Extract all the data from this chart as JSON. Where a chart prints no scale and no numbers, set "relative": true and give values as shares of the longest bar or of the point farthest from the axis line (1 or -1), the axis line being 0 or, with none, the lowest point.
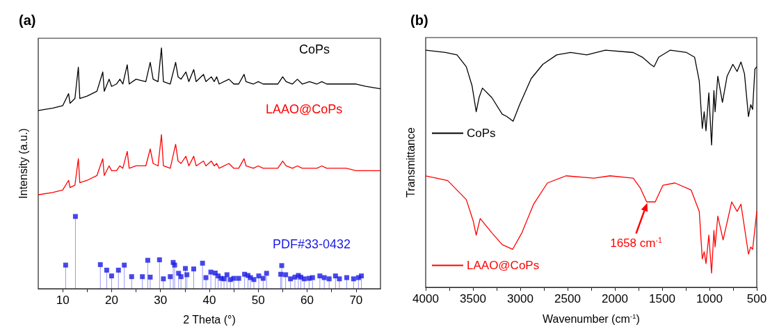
{
  "chart_data": [
    {
      "type": "line",
      "title": "(a)",
      "xlabel": "2 Theta (°)",
      "ylabel": "Intensity (a.u.)",
      "relative": true,
      "legend": false,
      "grid": false,
      "xlim": [
        5,
        75
      ],
      "xticks": [
        {
          "value": 15,
          "label": null
        },
        {
          "value": 25,
          "label": null
        },
        {
          "value": 35,
          "label": null
        },
        {
          "value": 45,
          "label": null
        },
        {
          "value": 55,
          "label": null
        },
        {
          "value": 65,
          "label": null
        },
        10,
        20,
        30,
        40,
        50,
        60,
        70
      ],
      "series": [
        {
          "name": "CoPs",
          "color": "#000000",
          "x": [
            5,
            8,
            10,
            11.2,
            11.5,
            12.5,
            13.2,
            13.5,
            15,
            17,
            18.2,
            18.5,
            19.5,
            20,
            21,
            21.7,
            22.3,
            23.2,
            23.6,
            25,
            27,
            27.9,
            28.5,
            29.5,
            30.2,
            30.6,
            32,
            33.1,
            33.6,
            34.2,
            35.2,
            35.8,
            36.8,
            37.3,
            38.8,
            39.3,
            40.4,
            41,
            41.5,
            42,
            44,
            45,
            46,
            47.1,
            47.5,
            49,
            50,
            51,
            52,
            54,
            55,
            55.7,
            57,
            58,
            59,
            60.5,
            62,
            63,
            64,
            66,
            68,
            70,
            72,
            75
          ],
          "values": [
            0.74,
            0.75,
            0.76,
            0.81,
            0.77,
            0.79,
            0.92,
            0.79,
            0.8,
            0.82,
            0.9,
            0.82,
            0.87,
            0.84,
            0.85,
            0.87,
            0.85,
            0.93,
            0.85,
            0.87,
            0.86,
            0.94,
            0.87,
            0.86,
            1.0,
            0.86,
            0.85,
            0.94,
            0.88,
            0.87,
            0.9,
            0.86,
            0.91,
            0.86,
            0.89,
            0.86,
            0.88,
            0.86,
            0.88,
            0.85,
            0.87,
            0.85,
            0.85,
            0.89,
            0.86,
            0.85,
            0.86,
            0.85,
            0.85,
            0.85,
            0.88,
            0.86,
            0.85,
            0.87,
            0.85,
            0.86,
            0.85,
            0.86,
            0.85,
            0.85,
            0.85,
            0.85,
            0.84,
            0.83
          ]
        },
        {
          "name": "LAAO@CoPs",
          "color": "#ff0000",
          "x": [
            5,
            8,
            10,
            11.2,
            11.5,
            12.5,
            13.2,
            13.5,
            15,
            17,
            18.2,
            18.5,
            19.5,
            20,
            21,
            21.7,
            22.3,
            23.2,
            23.6,
            25,
            27,
            27.9,
            28.5,
            29.5,
            30.2,
            30.6,
            32,
            33.1,
            33.6,
            34.2,
            35.2,
            35.8,
            36.8,
            37.3,
            38.8,
            39.3,
            40.4,
            41,
            41.5,
            42,
            44,
            45,
            46,
            47.1,
            47.5,
            49,
            50,
            51,
            52,
            54,
            55,
            55.7,
            57,
            58,
            59,
            60.5,
            62,
            63,
            64,
            66,
            68,
            70,
            72,
            75
          ],
          "values": [
            0.39,
            0.4,
            0.41,
            0.45,
            0.42,
            0.43,
            0.54,
            0.44,
            0.45,
            0.47,
            0.54,
            0.47,
            0.51,
            0.49,
            0.49,
            0.51,
            0.5,
            0.57,
            0.5,
            0.51,
            0.51,
            0.58,
            0.52,
            0.51,
            0.64,
            0.51,
            0.5,
            0.6,
            0.53,
            0.52,
            0.55,
            0.51,
            0.55,
            0.51,
            0.53,
            0.51,
            0.53,
            0.51,
            0.52,
            0.5,
            0.52,
            0.5,
            0.5,
            0.54,
            0.51,
            0.5,
            0.51,
            0.5,
            0.5,
            0.5,
            0.53,
            0.51,
            0.5,
            0.51,
            0.5,
            0.5,
            0.5,
            0.51,
            0.5,
            0.5,
            0.5,
            0.49,
            0.49,
            0.49
          ]
        },
        {
          "name": "PDF#33-0432",
          "type": "lollipop",
          "marker": "square",
          "color": "#1a1ae6",
          "x": [
            10.6,
            12.6,
            17.7,
            19.0,
            20.0,
            21.4,
            22.6,
            24.1,
            26.3,
            27.4,
            27.9,
            29.8,
            30.6,
            32.0,
            32.6,
            32.9,
            33.7,
            34.2,
            35.1,
            35.4,
            36.8,
            38.6,
            39.3,
            40.3,
            41.2,
            41.8,
            42.4,
            43.0,
            43.6,
            44.3,
            45.0,
            46.0,
            46.9,
            47.2,
            47.9,
            48.4,
            49.1,
            50.1,
            51.0,
            51.7,
            54.6,
            54.8,
            55.6,
            56.6,
            57.5,
            58.2,
            58.7,
            59.4,
            60.4,
            61.1,
            62.6,
            63.5,
            64.5,
            65.8,
            66.6,
            68.1,
            69.5,
            70.5,
            71.1
          ],
          "values": [
            0.098,
            0.3,
            0.1,
            0.077,
            0.053,
            0.077,
            0.098,
            0.05,
            0.05,
            0.118,
            0.048,
            0.12,
            0.041,
            0.05,
            0.109,
            0.098,
            0.064,
            0.05,
            0.084,
            0.058,
            0.082,
            0.106,
            0.046,
            0.069,
            0.065,
            0.053,
            0.043,
            0.041,
            0.058,
            0.038,
            0.043,
            0.043,
            null,
            0.06,
            0.055,
            0.046,
            0.038,
            0.053,
            0.043,
            0.064,
            0.06,
            0.096,
            0.058,
            0.041,
            0.048,
            0.055,
            0.048,
            0.041,
            0.043,
            0.046,
            0.053,
            0.046,
            0.041,
            0.053,
            0.041,
            0.046,
            0.041,
            0.046,
            0.053
          ]
        }
      ]
    },
    {
      "type": "line",
      "title": "(b)",
      "xlabel": "Wavenumber (cm$^{-1}$)",
      "ylabel": "Transmittance",
      "relative": true,
      "legend": "left",
      "grid": false,
      "xlim": [
        4000,
        500
      ],
      "xticks": [
        4000,
        3500,
        3000,
        2500,
        2000,
        1500,
        1000,
        500,
        {
          "value": 3750,
          "label": null
        },
        {
          "value": 3250,
          "label": null
        },
        {
          "value": 2750,
          "label": null
        },
        {
          "value": 2250,
          "label": null
        },
        {
          "value": 1750,
          "label": null
        },
        {
          "value": 1250,
          "label": null
        },
        {
          "value": 750,
          "label": null
        }
      ],
      "annotations": [
        {
          "text": "1658 cm$^{-1}$",
          "x": 1658,
          "y": 0.356
        }
      ],
      "series": [
        {
          "name": "CoPs",
          "color": "#000000",
          "x": [
            4000,
            3792,
            3669,
            3571,
            3510,
            3466,
            3436,
            3400,
            3301,
            3191,
            3142,
            3076,
            3007,
            2885,
            2762,
            2615,
            2468,
            2297,
            2100,
            1806,
            1708,
            1623,
            1586,
            1537,
            1414,
            1243,
            1157,
            1108,
            1076,
            1056,
            1037,
            1007,
            978,
            953,
            941,
            912,
            863,
            814,
            753,
            708,
            667,
            630,
            588,
            564,
            544,
            520,
            500
          ],
          "values": [
            1.0,
            0.99,
            0.98,
            0.93,
            0.85,
            0.74,
            0.8,
            0.84,
            0.8,
            0.73,
            0.72,
            0.7,
            0.77,
            0.88,
            0.94,
            0.98,
            0.99,
            0.98,
            1.0,
            0.99,
            0.97,
            0.94,
            0.93,
            0.97,
            1.0,
            0.99,
            0.97,
            0.87,
            0.67,
            0.74,
            0.66,
            0.82,
            0.6,
            0.83,
            0.74,
            0.89,
            0.78,
            0.89,
            0.94,
            0.91,
            0.95,
            0.9,
            0.72,
            0.77,
            0.75,
            0.92,
            0.93
          ]
        },
        {
          "name": "LAAO@CoPs",
          "color": "#ff0000",
          "x": [
            4000,
            3767,
            3571,
            3498,
            3466,
            3424,
            3301,
            3191,
            3081,
            2983,
            2860,
            2713,
            2517,
            2223,
            2051,
            1806,
            1733,
            1664,
            1610,
            1574,
            1493,
            1365,
            1194,
            1108,
            1076,
            1056,
            1037,
            1007,
            978,
            953,
            941,
            912,
            856,
            765,
            708,
            667,
            588,
            564,
            544,
            500
          ],
          "values": [
            0.47,
            0.45,
            0.37,
            0.28,
            0.22,
            0.29,
            0.23,
            0.18,
            0.16,
            0.23,
            0.35,
            0.44,
            0.47,
            0.46,
            0.47,
            0.46,
            0.42,
            0.36,
            0.36,
            0.36,
            0.43,
            0.44,
            0.41,
            0.32,
            0.12,
            0.15,
            0.1,
            0.22,
            0.06,
            0.24,
            0.17,
            0.3,
            0.2,
            0.36,
            0.32,
            0.35,
            0.14,
            0.17,
            0.16,
            0.32
          ]
        }
      ]
    }
  ]
}
